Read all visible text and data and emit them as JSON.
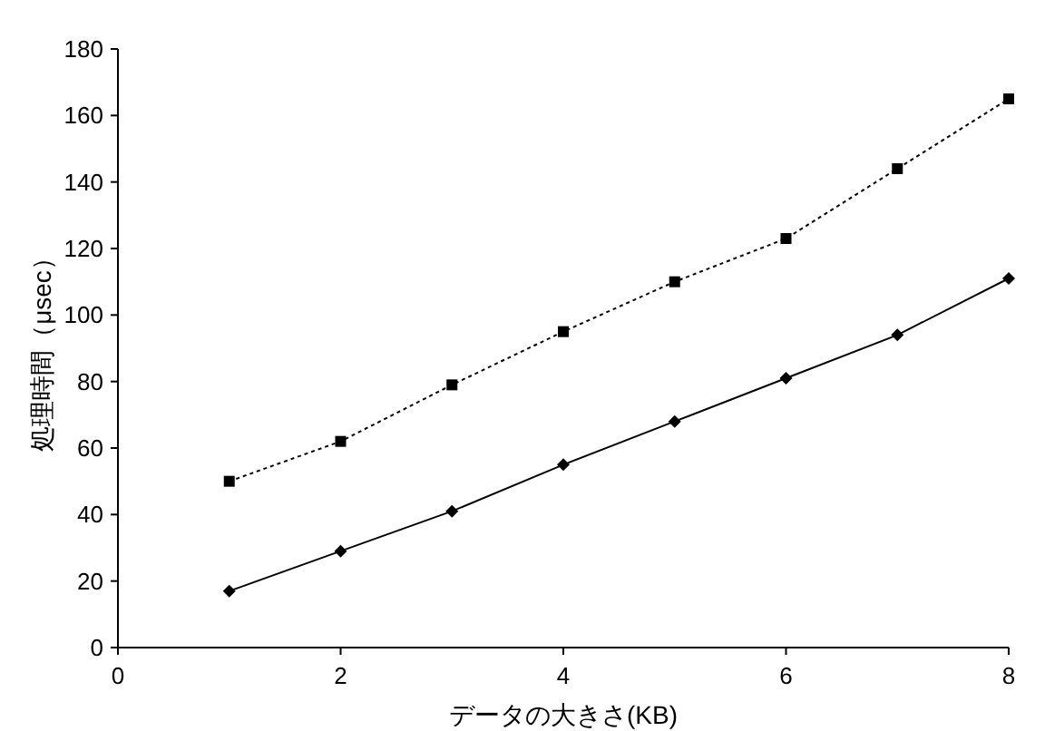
{
  "chart_data": {
    "type": "line",
    "xlabel": "データの大きさ(KB)",
    "ylabel": "処理時間（μsec）",
    "x": [
      1,
      2,
      3,
      4,
      5,
      6,
      7,
      8
    ],
    "series": [
      {
        "color": "#000000",
        "marker": "square",
        "line_style": "dotted",
        "values": [
          50,
          62,
          79,
          95,
          110,
          123,
          144,
          165
        ]
      },
      {
        "color": "#000000",
        "marker": "diamond",
        "line_style": "solid",
        "values": [
          17,
          29,
          41,
          55,
          68,
          81,
          94,
          111
        ]
      }
    ],
    "xlim": [
      0,
      8
    ],
    "xticks": [
      0,
      2,
      4,
      6,
      8
    ],
    "ylim": [
      0,
      180
    ],
    "yticks": [
      0,
      20,
      40,
      60,
      80,
      100,
      120,
      140,
      160,
      180
    ],
    "grid": false
  }
}
